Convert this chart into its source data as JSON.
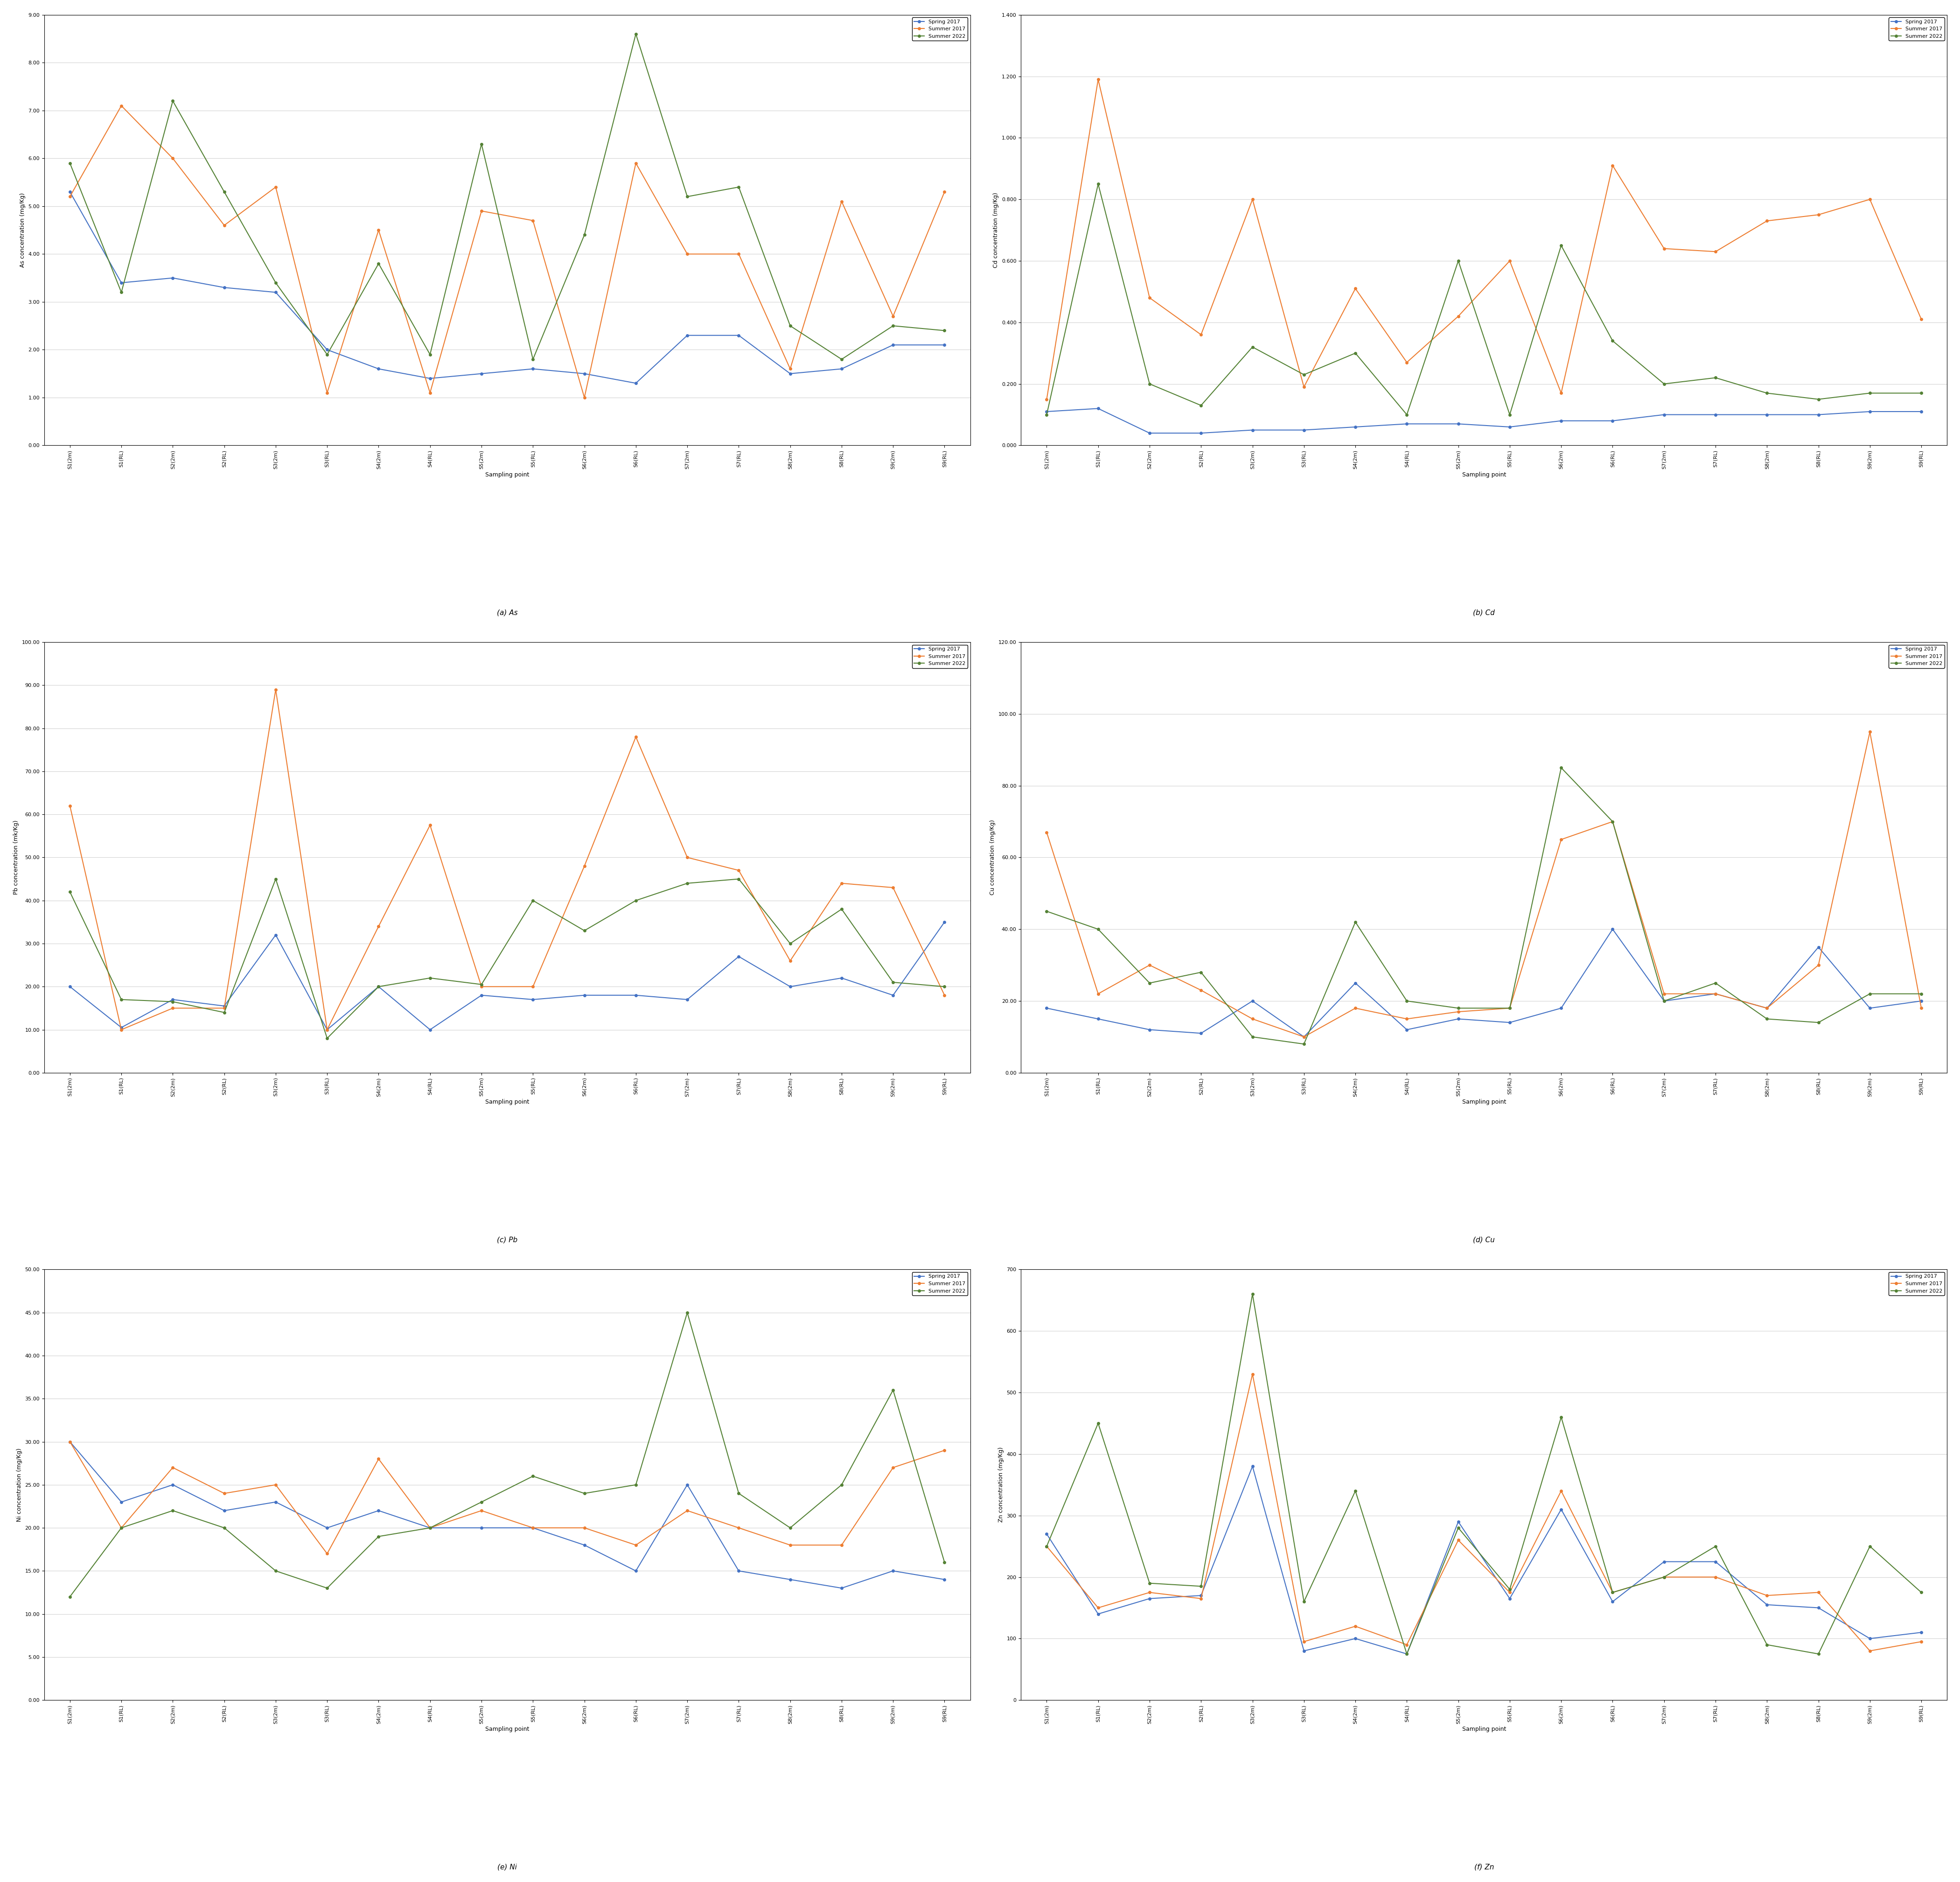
{
  "x_labels": [
    "S1(2m)",
    "S1(RL)",
    "S2(2m)",
    "S2(RL)",
    "S3(2m)",
    "S3(RL)",
    "S4(2m)",
    "S4(RL)",
    "S5(2m)",
    "S5(RL)",
    "S6(2m)",
    "S6(RL)",
    "S7(2m)",
    "S7(RL)",
    "S8(2m)",
    "S8(RL)",
    "S9(2m)",
    "S9(RL)"
  ],
  "As": {
    "spring2017": [
      5.3,
      3.4,
      3.5,
      3.3,
      3.2,
      2.0,
      1.6,
      1.4,
      1.5,
      1.6,
      1.5,
      1.3,
      2.3,
      2.3,
      1.5,
      1.6,
      2.1,
      2.1
    ],
    "summer2017": [
      5.2,
      7.1,
      6.0,
      4.6,
      5.4,
      1.1,
      4.5,
      1.1,
      4.9,
      4.7,
      1.0,
      5.9,
      4.0,
      4.0,
      1.6,
      5.1,
      2.7,
      5.3
    ],
    "summer2022": [
      5.9,
      3.2,
      7.2,
      5.3,
      3.4,
      1.9,
      3.8,
      1.9,
      6.3,
      1.8,
      4.4,
      8.6,
      5.2,
      5.4,
      2.5,
      1.8,
      2.5,
      2.4
    ]
  },
  "As_ylim": [
    0,
    9.0
  ],
  "As_yticks": [
    0,
    1.0,
    2.0,
    3.0,
    4.0,
    5.0,
    6.0,
    7.0,
    8.0,
    9.0
  ],
  "As_ylabel": "As concentration (mg/Kg)",
  "Cd": {
    "spring2017": [
      0.11,
      0.12,
      0.04,
      0.04,
      0.05,
      0.05,
      0.06,
      0.07,
      0.07,
      0.06,
      0.08,
      0.08,
      0.1,
      0.1,
      0.1,
      0.1,
      0.11,
      0.11
    ],
    "summer2017": [
      0.15,
      1.19,
      0.48,
      0.36,
      0.8,
      0.19,
      0.51,
      0.27,
      0.42,
      0.6,
      0.17,
      0.91,
      0.64,
      0.63,
      0.73,
      0.75,
      0.8,
      0.41
    ],
    "summer2022": [
      0.1,
      0.85,
      0.2,
      0.13,
      0.32,
      0.23,
      0.3,
      0.1,
      0.6,
      0.1,
      0.65,
      0.34,
      0.2,
      0.22,
      0.17,
      0.15,
      0.17,
      0.17
    ]
  },
  "Cd_ylim": [
    0,
    1.4
  ],
  "Cd_yticks": [
    0.0,
    0.2,
    0.4,
    0.6,
    0.8,
    1.0,
    1.2,
    1.4
  ],
  "Cd_ylabel": "Cd concentration (mg/Kg)",
  "Pb": {
    "spring2017": [
      20.0,
      10.5,
      17.0,
      15.5,
      32.0,
      10.0,
      20.0,
      10.0,
      18.0,
      17.0,
      18.0,
      18.0,
      17.0,
      27.0,
      20.0,
      22.0,
      18.0,
      35.0
    ],
    "summer2017": [
      62.0,
      10.0,
      15.0,
      15.0,
      89.0,
      10.0,
      34.0,
      57.5,
      20.0,
      20.0,
      48.0,
      78.0,
      50.0,
      47.0,
      26.0,
      44.0,
      43.0,
      18.0
    ],
    "summer2022": [
      42.0,
      17.0,
      16.5,
      14.0,
      45.0,
      8.0,
      20.0,
      22.0,
      20.5,
      40.0,
      33.0,
      40.0,
      44.0,
      45.0,
      30.0,
      38.0,
      21.0,
      20.0
    ]
  },
  "Pb_ylim": [
    0,
    100.0
  ],
  "Pb_yticks": [
    0,
    10.0,
    20.0,
    30.0,
    40.0,
    50.0,
    60.0,
    70.0,
    80.0,
    90.0,
    100.0
  ],
  "Pb_ylabel": "Pb concentration (mk/Kg)",
  "Cu": {
    "spring2017": [
      18.0,
      15.0,
      12.0,
      11.0,
      20.0,
      10.0,
      25.0,
      12.0,
      15.0,
      14.0,
      18.0,
      40.0,
      20.0,
      22.0,
      18.0,
      35.0,
      18.0,
      20.0
    ],
    "summer2017": [
      67.0,
      22.0,
      30.0,
      23.0,
      15.0,
      10.0,
      18.0,
      15.0,
      17.0,
      18.0,
      65.0,
      70.0,
      22.0,
      22.0,
      18.0,
      30.0,
      95.0,
      18.0
    ],
    "summer2022": [
      45.0,
      40.0,
      25.0,
      28.0,
      10.0,
      8.0,
      42.0,
      20.0,
      18.0,
      18.0,
      85.0,
      70.0,
      20.0,
      25.0,
      15.0,
      14.0,
      22.0,
      22.0
    ]
  },
  "Cu_ylim": [
    0,
    120.0
  ],
  "Cu_yticks": [
    0,
    20.0,
    40.0,
    60.0,
    80.0,
    100.0,
    120.0
  ],
  "Cu_ylabel": "Cu concentration (mg/Kg)",
  "Ni": {
    "spring2017": [
      30.0,
      23.0,
      25.0,
      22.0,
      23.0,
      20.0,
      22.0,
      20.0,
      20.0,
      20.0,
      18.0,
      15.0,
      25.0,
      15.0,
      14.0,
      13.0,
      15.0,
      14.0
    ],
    "summer2017": [
      30.0,
      20.0,
      27.0,
      24.0,
      25.0,
      17.0,
      28.0,
      20.0,
      22.0,
      20.0,
      20.0,
      18.0,
      22.0,
      20.0,
      18.0,
      18.0,
      27.0,
      29.0
    ],
    "summer2022": [
      12.0,
      20.0,
      22.0,
      20.0,
      15.0,
      13.0,
      19.0,
      20.0,
      23.0,
      26.0,
      24.0,
      25.0,
      45.0,
      24.0,
      20.0,
      25.0,
      36.0,
      16.0
    ]
  },
  "Ni_ylim": [
    0,
    50.0
  ],
  "Ni_yticks": [
    0,
    5.0,
    10.0,
    15.0,
    20.0,
    25.0,
    30.0,
    35.0,
    40.0,
    45.0,
    50.0
  ],
  "Ni_ylabel": "Ni concentration (mg/Kg)",
  "Zn": {
    "spring2017": [
      270.0,
      140.0,
      165.0,
      170.0,
      380.0,
      80.0,
      100.0,
      75.0,
      290.0,
      165.0,
      310.0,
      160.0,
      225.0,
      225.0,
      155.0,
      150.0,
      100.0,
      110.0
    ],
    "summer2017": [
      250.0,
      150.0,
      175.0,
      165.0,
      530.0,
      95.0,
      120.0,
      90.0,
      260.0,
      175.0,
      340.0,
      175.0,
      200.0,
      200.0,
      170.0,
      175.0,
      80.0,
      95.0
    ],
    "summer2022": [
      250.0,
      450.0,
      190.0,
      185.0,
      660.0,
      160.0,
      340.0,
      75.0,
      280.0,
      180.0,
      460.0,
      175.0,
      200.0,
      250.0,
      90.0,
      75.0,
      250.0,
      175.0
    ]
  },
  "Zn_ylim": [
    0,
    700.0
  ],
  "Zn_yticks": [
    0,
    100,
    200,
    300,
    400,
    500,
    600,
    700
  ],
  "Zn_ylabel": "Zn concentration (mg/Kg)",
  "color_spring": "#4472C4",
  "color_summer2017": "#ED7D31",
  "color_summer2022": "#548235",
  "legend_labels": [
    "Spring 2017",
    "Summer 2017",
    "Summer 2022"
  ],
  "xlabel": "Sampling point",
  "subplot_labels": [
    "(a) As",
    "(b) Cd",
    "(c) Pb",
    "(d) Cu",
    "(e) Ni",
    "(f) Zn"
  ]
}
